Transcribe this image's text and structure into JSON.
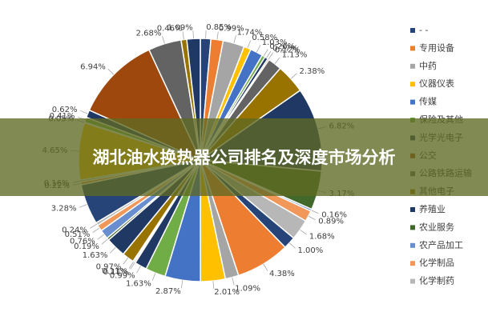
{
  "chart_data": {
    "type": "pie",
    "title": "湖北油水换热器公司排名及深度市场分析",
    "values": [
      0.85,
      0.99,
      1.74,
      0.58,
      1.03,
      0.26,
      0.27,
      0.12,
      1.13,
      2.38,
      6.82,
      3.17,
      0.16,
      0.89,
      1.68,
      1.0,
      4.38,
      1.09,
      2.01,
      2.87,
      1.63,
      0.99,
      0.11,
      0.11,
      0.97,
      1.63,
      0.19,
      0.76,
      0.51,
      0.24,
      3.28,
      0.22,
      0.16,
      4.65,
      0.05,
      0.41,
      0.62,
      6.94,
      2.68,
      0.46,
      1.09
    ],
    "value_labels": [
      "0.85%",
      "0.99%",
      "1.74%",
      "0.58%",
      "1.03%",
      "0.26%",
      "0.27%",
      "0.12%",
      "1.13%",
      "2.38%",
      "6.82%",
      "3.17%",
      "0.16%",
      "0.89%",
      "1.68%",
      "1.00%",
      "4.38%",
      "1.09%",
      "2.01%",
      "2.87%",
      "1.63%",
      "0.99%",
      "0.11%",
      "0.11%",
      "0.97%",
      "1.63%",
      "0.19%",
      "0.76%",
      "0.51%",
      "0.24%",
      "3.28%",
      "0.22%",
      "0.16%",
      "4.65%",
      "0.05%",
      "0.41%",
      "0.62%",
      "6.94%",
      "2.68%",
      "0.46%",
      "1.09%"
    ],
    "legend": [
      {
        "name": "- -",
        "color": "#264478"
      },
      {
        "name": "专用设备",
        "color": "#ed7d31"
      },
      {
        "name": "中药",
        "color": "#a5a5a5"
      },
      {
        "name": "仪器仪表",
        "color": "#ffc000"
      },
      {
        "name": "传媒",
        "color": "#4472c4"
      },
      {
        "name": "保险及其他",
        "color": "#70ad47"
      },
      {
        "name": "光学光电子",
        "color": "#1f3864"
      },
      {
        "name": "公交",
        "color": "#9e480e"
      },
      {
        "name": "公路铁路运输",
        "color": "#636363"
      },
      {
        "name": "其他电子",
        "color": "#997300"
      },
      {
        "name": "养殖业",
        "color": "#203864"
      },
      {
        "name": "农业服务",
        "color": "#43682b"
      },
      {
        "name": "农产品加工",
        "color": "#698ed0"
      },
      {
        "name": "化学制品",
        "color": "#f1975a"
      },
      {
        "name": "化学制药",
        "color": "#b7b7b7"
      }
    ]
  }
}
